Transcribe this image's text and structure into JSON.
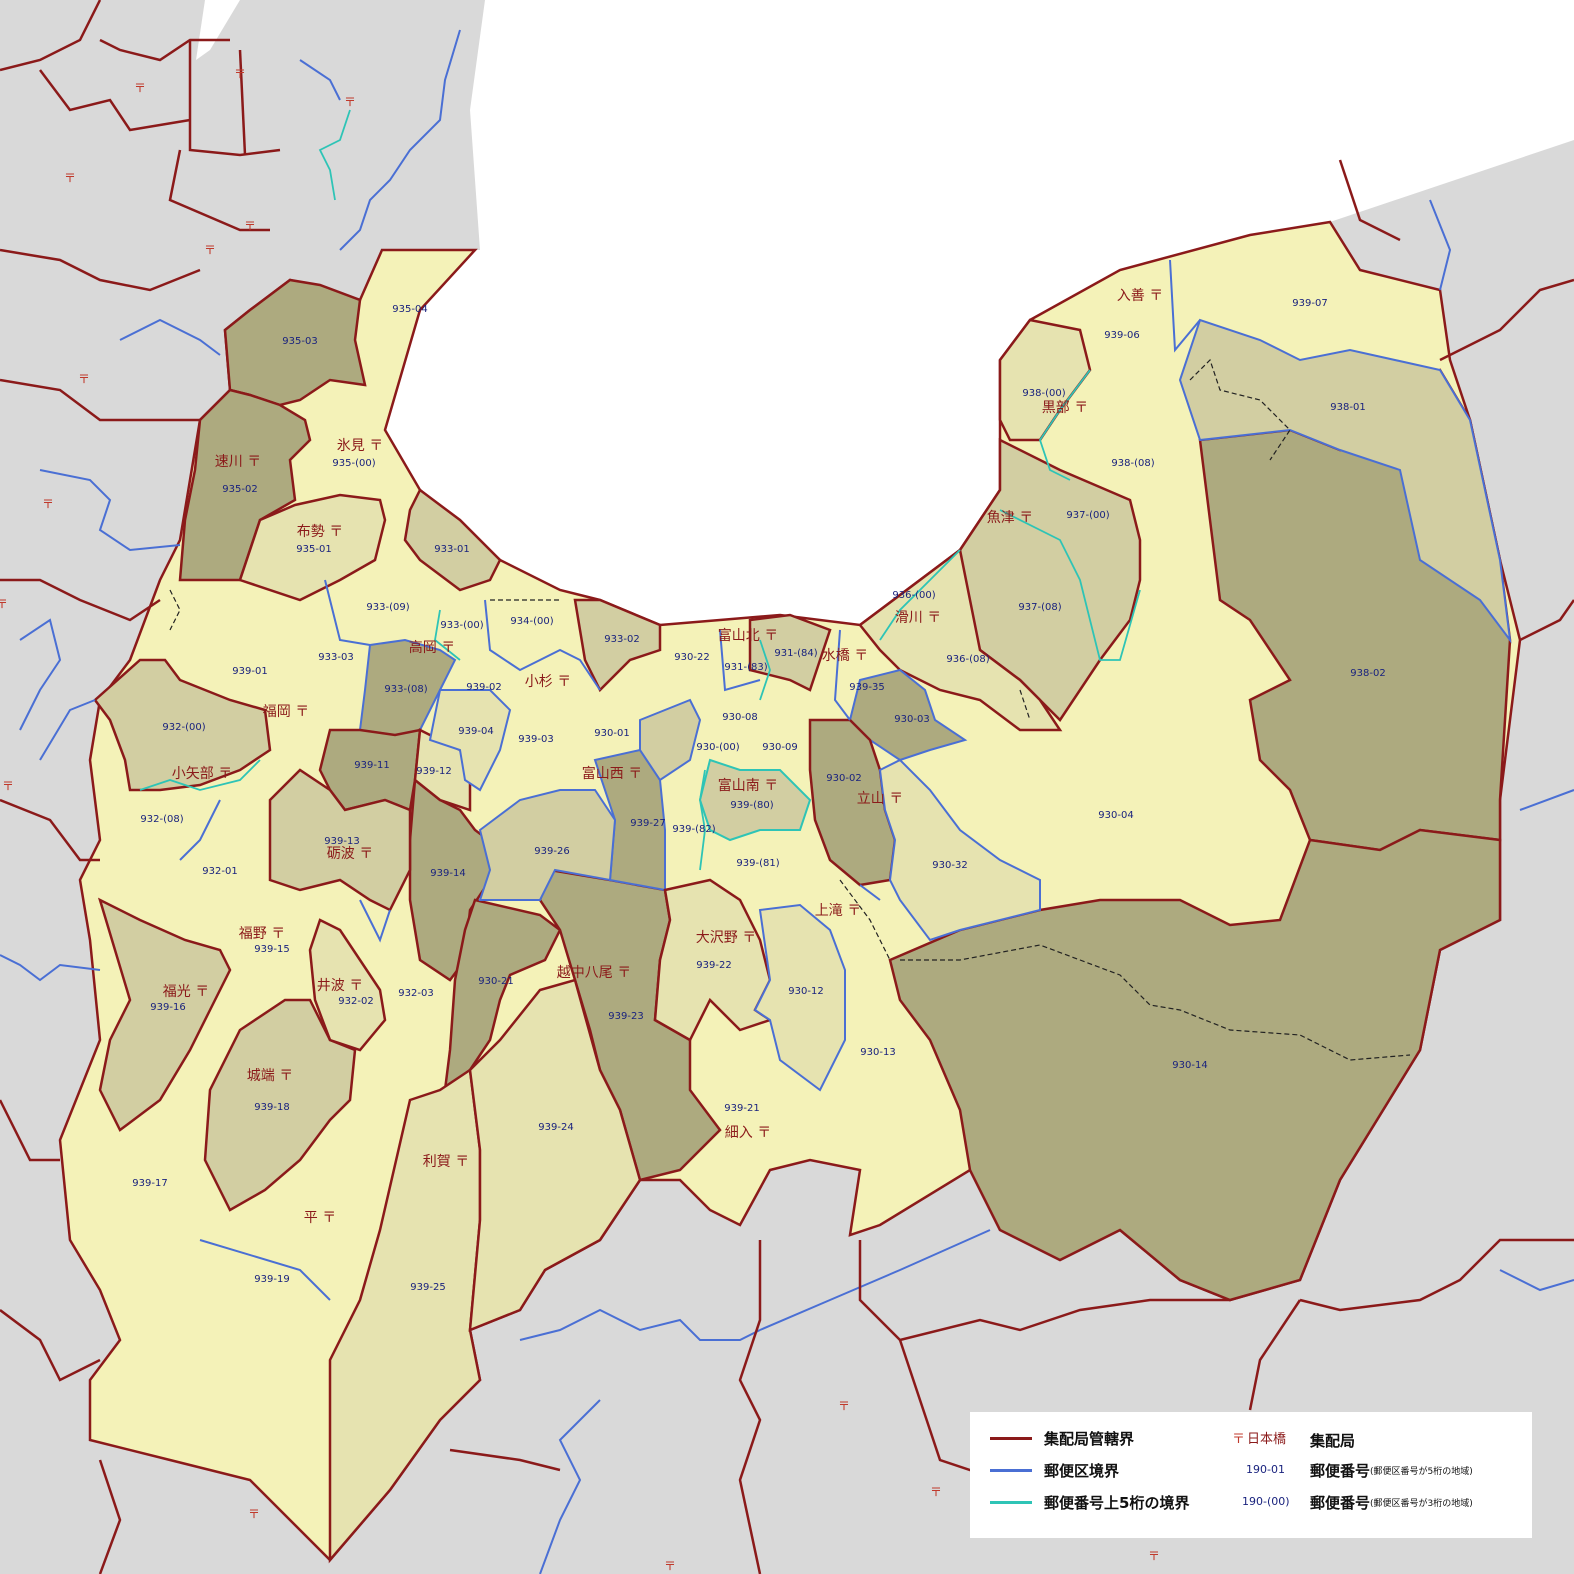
{
  "colors": {
    "sea": "#ffffff",
    "outside": "#d9d9d9",
    "light": "#f4f2b8",
    "medium": "#e6e3b0",
    "tan": "#d2cea2",
    "dark": "#adaa7f",
    "office_boundary": "#8b1a1a",
    "postal_boundary": "#4a6fd4",
    "upper5_boundary": "#2ec4b6"
  },
  "offices": [
    {
      "name": "入善",
      "code": "939-06"
    },
    {
      "name": "黒部",
      "code": "938-(08)"
    },
    {
      "name": "魚津",
      "code": "937-(00)"
    },
    {
      "name": "滑川",
      "code": "936-(08)"
    },
    {
      "name": "水橋",
      "code": "939-35"
    },
    {
      "name": "富山北",
      "code": "931-(83)"
    },
    {
      "name": "富山南",
      "code": "939-(80)"
    },
    {
      "name": "富山西",
      "code": "930-01"
    },
    {
      "name": "立山",
      "code": "930-02"
    },
    {
      "name": "上滝",
      "code": "930-13"
    },
    {
      "name": "大沢野",
      "code": "939-22"
    },
    {
      "name": "細入",
      "code": "939-21"
    },
    {
      "name": "越中八尾",
      "code": "939-23"
    },
    {
      "name": "小杉",
      "code": "939-03"
    },
    {
      "name": "高岡",
      "code": "933-(00)"
    },
    {
      "name": "氷見",
      "code": "935-(00)"
    },
    {
      "name": "速川",
      "code": "935-02"
    },
    {
      "name": "布勢",
      "code": "935-01"
    },
    {
      "name": "福岡",
      "code": "939-01"
    },
    {
      "name": "小矢部",
      "code": "932-(08)"
    },
    {
      "name": "砺波",
      "code": "939-13"
    },
    {
      "name": "福野",
      "code": "939-15"
    },
    {
      "name": "井波",
      "code": "932-02"
    },
    {
      "name": "福光",
      "code": "939-16"
    },
    {
      "name": "城端",
      "code": "939-18"
    },
    {
      "name": "平",
      "code": "939-19"
    },
    {
      "name": "利賀",
      "code": "939-25"
    }
  ],
  "codes": [
    "939-07",
    "938-(00)",
    "938-01",
    "938-02",
    "937-(08)",
    "936-(00)",
    "930-03",
    "930-04",
    "930-32",
    "930-14",
    "930-12",
    "930-22",
    "931-(84)",
    "930-08",
    "930-(00)",
    "930-09",
    "939-(82)",
    "939-(81)",
    "939-27",
    "939-26",
    "930-21",
    "939-24",
    "939-02",
    "939-04",
    "934-(00)",
    "933-02",
    "933-01",
    "933-(09)",
    "933-03",
    "933-(08)",
    "939-11",
    "939-12",
    "939-14",
    "932-01",
    "932-(00)",
    "932-03",
    "939-17",
    "935-03",
    "935-04"
  ],
  "legend": {
    "office_boundary": "集配局管轄界",
    "postal_boundary": "郵便区境界",
    "upper5_boundary": "郵便番号上5桁の境界",
    "office_sample": "日本橋",
    "office_label": "集配局",
    "code5_sample": "190-01",
    "code5_label": "郵便番号",
    "code5_note": "(郵便区番号が5桁の地域)",
    "code3_sample": "190-(00)",
    "code3_label": "郵便番号",
    "code3_note": "(郵便区番号が3桁の地域)",
    "mark": "〒"
  }
}
